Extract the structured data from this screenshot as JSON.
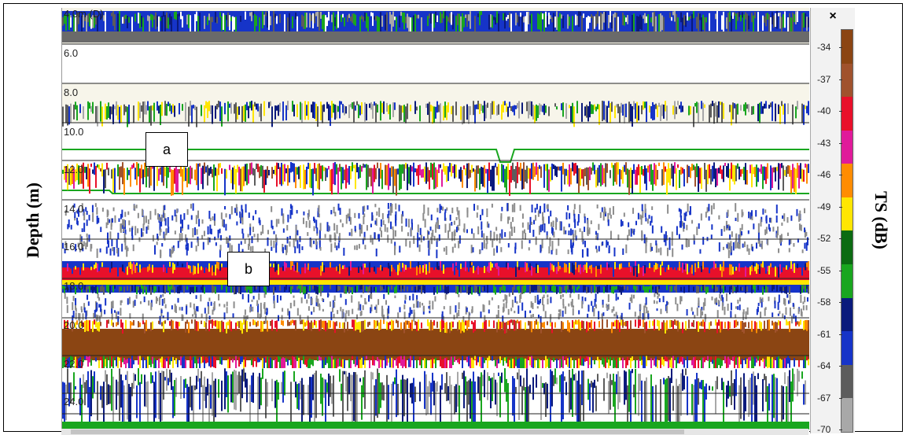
{
  "axes": {
    "depth_label": "Depth (m)",
    "ts_label": "TS (dB)"
  },
  "depth_ticks": [
    "4.0m (D)",
    "6.0",
    "8.0",
    "10.0",
    "12.0",
    "14.0",
    "16.0",
    "18.0",
    "20.0",
    "22.0",
    "24.0"
  ],
  "callouts": {
    "a": "a",
    "b": "b"
  },
  "color_scale": {
    "close_label": "×",
    "ticks": [
      "-34",
      "-37",
      "-40",
      "-43",
      "-46",
      "-49",
      "-52",
      "-55",
      "-58",
      "-61",
      "-64",
      "-67",
      "-70"
    ],
    "colors": [
      "#8b4513",
      "#a0522d",
      "#e8102a",
      "#e01a9a",
      "#ff8c00",
      "#ffe600",
      "#0b6b12",
      "#19a61f",
      "#0a1a7c",
      "#1634c8",
      "#5c5c5c",
      "#a8a8a8"
    ]
  }
}
